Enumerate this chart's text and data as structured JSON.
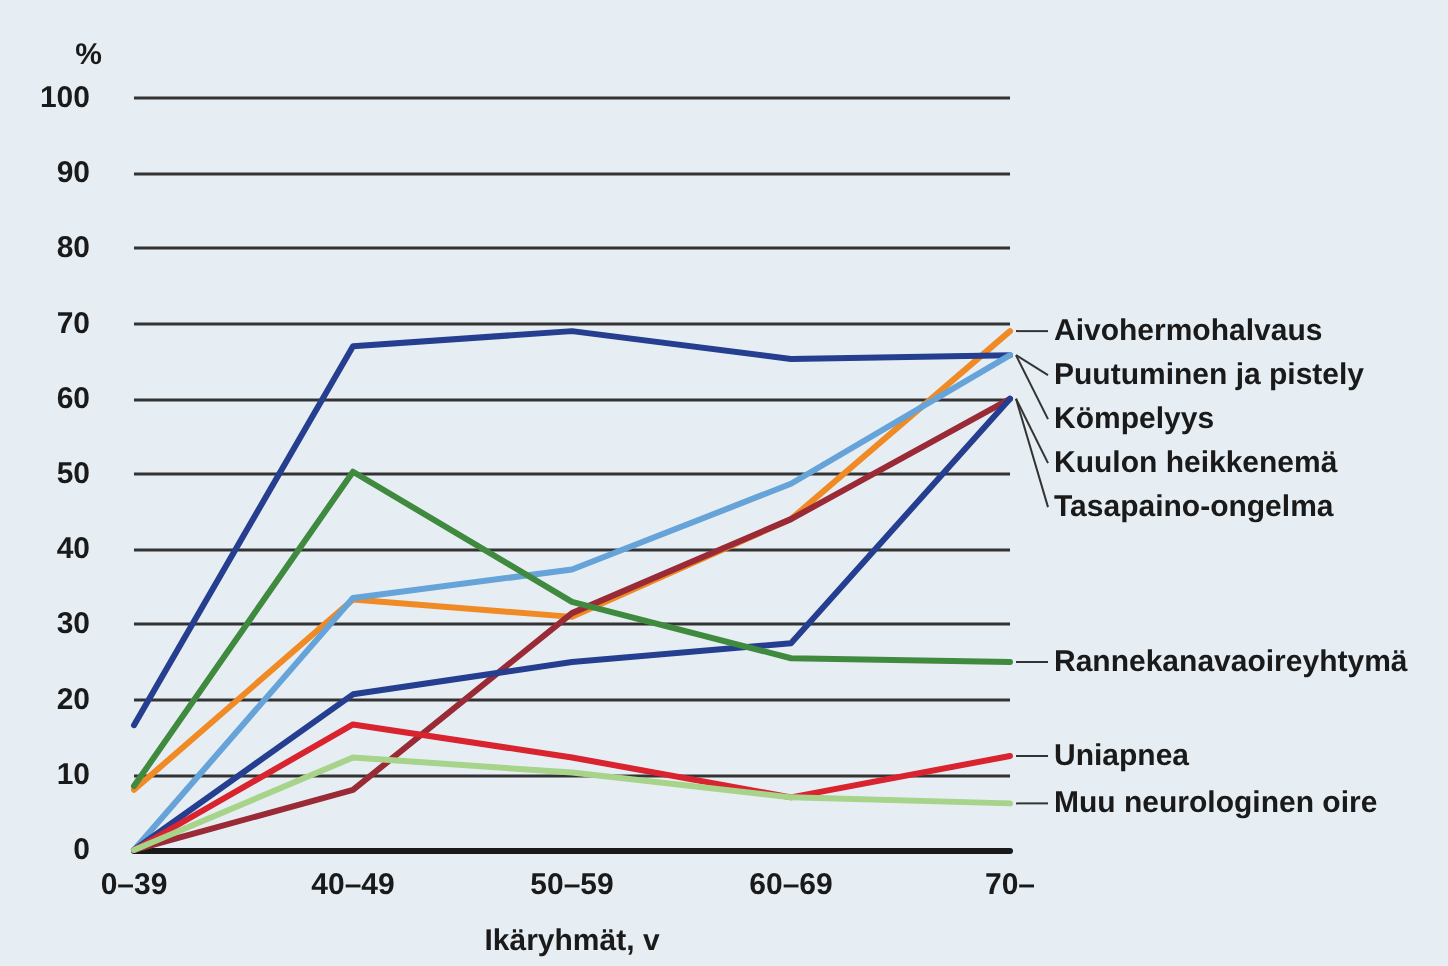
{
  "chart_data": {
    "type": "line",
    "ylabel": "%",
    "xlabel": "Ikäryhmät, v",
    "categories": [
      "0–39",
      "40–49",
      "50–59",
      "60–69",
      "70–"
    ],
    "ylim": [
      0,
      100
    ],
    "yticks": [
      0,
      10,
      20,
      30,
      40,
      50,
      60,
      70,
      80,
      90,
      100
    ],
    "grid": "y",
    "legend": false,
    "marker": "none",
    "line_style": "solid",
    "series": [
      {
        "name": "Aivohermohalvaus",
        "color": "#f08a24",
        "values": [
          8,
          33.3,
          31,
          44,
          69
        ]
      },
      {
        "name": "Puutuminen ja pistely",
        "color": "#253e8f",
        "values": [
          16.6,
          67,
          69,
          65.3,
          65.8
        ]
      },
      {
        "name": "Kömpelyys",
        "color": "#65a3d9",
        "values": [
          0,
          33.5,
          37.3,
          48.7,
          65.8
        ]
      },
      {
        "name": "Kuulon heikkenemä",
        "color": "#9a2a35",
        "values": [
          0,
          8,
          31.5,
          44,
          60
        ]
      },
      {
        "name": "Tasapaino-ongelma",
        "color": "#253e8f",
        "values": [
          0,
          20.7,
          25,
          27.5,
          60
        ]
      },
      {
        "name": "Rannekanavaoireyhtymä",
        "color": "#3f8a3f",
        "values": [
          8.5,
          50.3,
          33,
          25.5,
          25
        ]
      },
      {
        "name": "Uniapnea",
        "color": "#d9232f",
        "values": [
          0,
          16.7,
          12.3,
          7,
          12.5
        ]
      },
      {
        "name": "Muu neurologinen oire",
        "color": "#a7d38a",
        "values": [
          0,
          12.3,
          10.3,
          7,
          6.2
        ]
      }
    ]
  }
}
